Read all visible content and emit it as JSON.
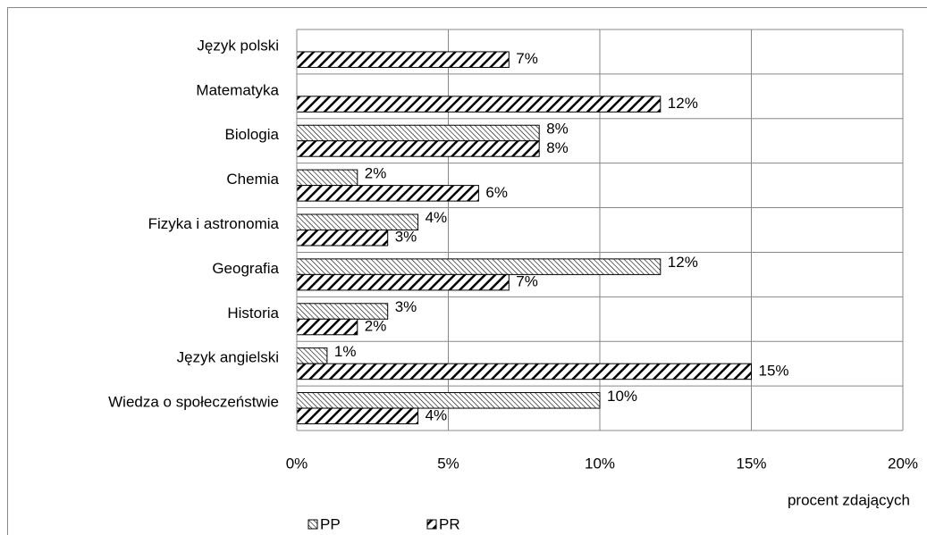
{
  "chart_data": {
    "type": "bar",
    "orientation": "horizontal",
    "categories": [
      "Język polski",
      "Matematyka",
      "Biologia",
      "Chemia",
      "Fizyka i astronomia",
      "Geografia",
      "Historia",
      "Język angielski",
      "Wiedza o społeczeństwie"
    ],
    "series": [
      {
        "name": "PP",
        "color": "#000000",
        "values": [
          null,
          null,
          8,
          2,
          4,
          12,
          3,
          1,
          10
        ],
        "value_labels": [
          null,
          null,
          "8%",
          "2%",
          "4%",
          "12%",
          "3%",
          "1%",
          "10%"
        ]
      },
      {
        "name": "PR",
        "color": "#000000",
        "values": [
          7,
          12,
          8,
          6,
          3,
          7,
          2,
          15,
          4
        ],
        "value_labels": [
          "7%",
          "12%",
          "8%",
          "6%",
          "3%",
          "7%",
          "2%",
          "15%",
          "4%"
        ]
      }
    ],
    "xlabel": "procent zdających",
    "xlim": [
      0,
      20
    ],
    "xticks": [
      {
        "value": 0,
        "label": "0%"
      },
      {
        "value": 5,
        "label": "5%"
      },
      {
        "value": 10,
        "label": "10%"
      },
      {
        "value": 15,
        "label": "15%"
      },
      {
        "value": 20,
        "label": "20%"
      }
    ],
    "grid": true,
    "legend": "bottom"
  }
}
